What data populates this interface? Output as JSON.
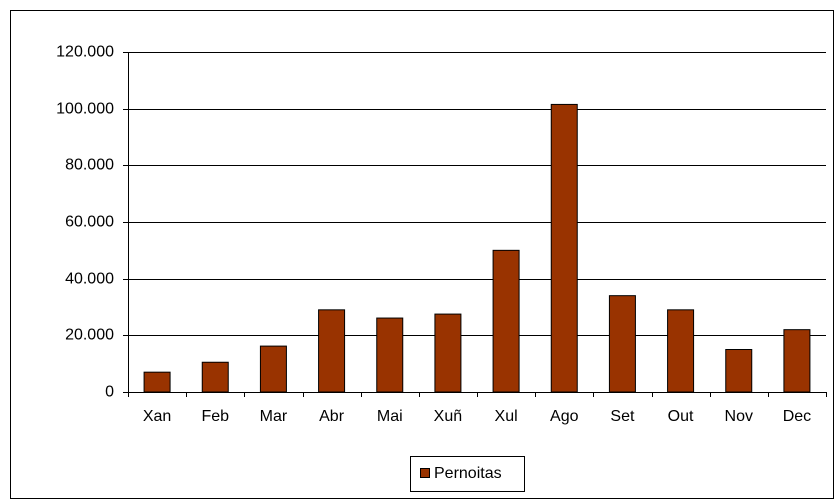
{
  "chart_data": {
    "type": "bar",
    "categories": [
      "Xan",
      "Feb",
      "Mar",
      "Abr",
      "Mai",
      "Xuñ",
      "Xul",
      "Ago",
      "Set",
      "Out",
      "Nov",
      "Dec"
    ],
    "series": [
      {
        "name": "Pernoitas",
        "color": "#993300",
        "values": [
          7000,
          10500,
          16200,
          29000,
          26100,
          27500,
          50000,
          101500,
          34000,
          29000,
          15000,
          22000
        ]
      }
    ],
    "ylim": [
      0,
      120000
    ],
    "yticks": [
      0,
      {
        "value": 20000,
        "label": "20.000"
      },
      {
        "value": 40000,
        "label": "40.000"
      },
      {
        "value": 60000,
        "label": "60.000"
      },
      {
        "value": 80000,
        "label": "80.000"
      },
      {
        "value": 100000,
        "label": "100.000"
      },
      {
        "value": 120000,
        "label": "120.000"
      }
    ],
    "grid": true,
    "legend": "bottom"
  }
}
